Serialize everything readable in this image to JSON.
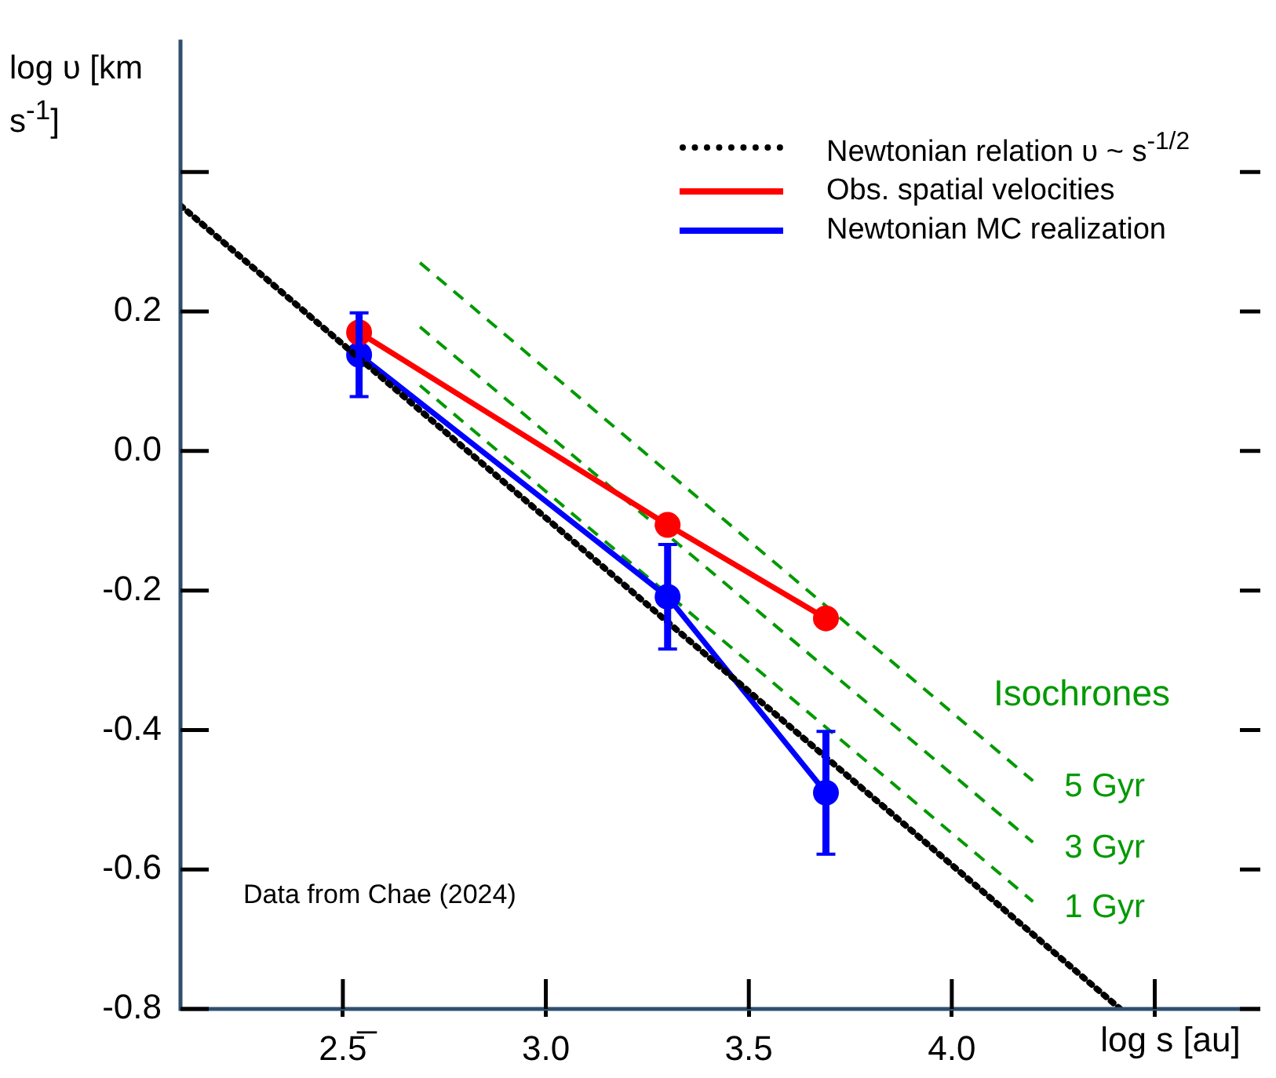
{
  "chart_data": {
    "type": "line",
    "xlabel": "log s [au]",
    "ylabel": "log υ [km s$^{-1}$]",
    "xlim": [
      2.1,
      4.76
    ],
    "ylim": [
      -0.8,
      0.59
    ],
    "xticks": [
      {
        "value": 2.5,
        "label": "2.5̅"
      },
      {
        "value": 3,
        "label": "3.0"
      },
      {
        "value": 3.5,
        "label": "3.5"
      },
      {
        "value": 4,
        "label": "4.0"
      },
      {
        "value": 4.5,
        "label": null
      }
    ],
    "yticks": [
      -0.8,
      -0.6,
      -0.4,
      -0.2,
      {
        "value": 0,
        "label": "0.0"
      },
      0.2,
      {
        "value": 0.4,
        "label": null
      }
    ],
    "grid": false,
    "legend": "top right",
    "annotations": [
      "Isochrones",
      "Data from Chae (2024)"
    ],
    "series": [
      {
        "name": "Newtonian relation  υ ~ s$^{-1/2}$",
        "color": "#000000",
        "x": [
          2.1,
          4.415
        ],
        "values": [
          0.352,
          -0.8
        ],
        "line_style": "dotted",
        "marker": "none"
      },
      {
        "name": "Obs. spatial velocities",
        "color": "#ff0000",
        "x": [
          2.54,
          3.3,
          3.69
        ],
        "values": [
          0.17,
          -0.106,
          -0.24
        ],
        "line_style": "solid",
        "marker": "circle"
      },
      {
        "name": "Newtonian MC realization",
        "color": "#0000ff",
        "x": [
          2.54,
          3.3,
          3.69
        ],
        "values": [
          0.138,
          -0.209,
          -0.49
        ],
        "errors": [
          0.06,
          0.075,
          0.088
        ],
        "line_style": "solid",
        "marker": "circle"
      },
      {
        "name": "5 Gyr",
        "color": "#009900",
        "x": [
          2.69,
          4.2
        ],
        "values": [
          0.27,
          -0.473
        ],
        "line_style": "dashed",
        "marker": "none"
      },
      {
        "name": "3 Gyr",
        "color": "#009900",
        "x": [
          2.69,
          4.2
        ],
        "values": [
          0.178,
          -0.561
        ],
        "line_style": "dashed",
        "marker": "none"
      },
      {
        "name": "1 Gyr",
        "color": "#009900",
        "x": [
          2.69,
          4.2
        ],
        "values": [
          0.094,
          -0.646
        ],
        "line_style": "dashed",
        "marker": "none"
      }
    ]
  }
}
